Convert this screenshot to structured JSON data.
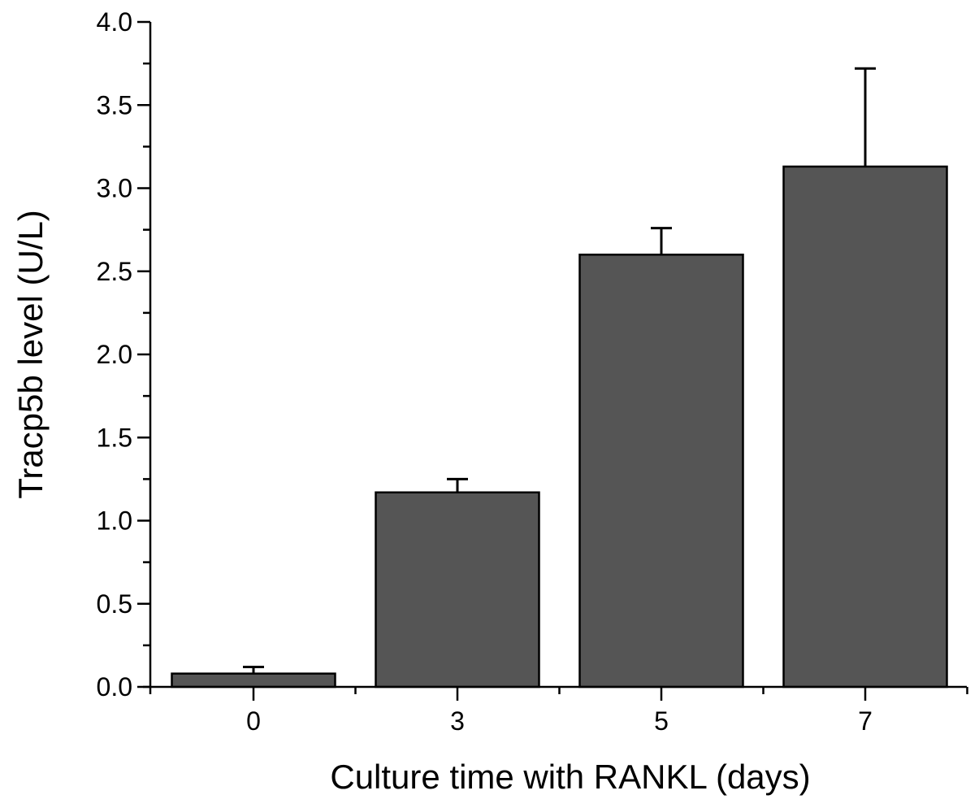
{
  "chart_data": {
    "type": "bar",
    "title": "",
    "xlabel": "Culture time with RANKL (days)",
    "ylabel": "Tracp5b level (U/L)",
    "categories": [
      "0",
      "3",
      "5",
      "7"
    ],
    "values": [
      0.08,
      1.17,
      2.6,
      3.13
    ],
    "error_upper": [
      0.04,
      0.08,
      0.16,
      0.59
    ],
    "ylim": [
      0,
      4.0
    ],
    "yticks": [
      "0.0",
      "0.5",
      "1.0",
      "1.5",
      "2.0",
      "2.5",
      "3.0",
      "3.5",
      "4.0"
    ],
    "grid": false,
    "bar_color": "#555555"
  }
}
